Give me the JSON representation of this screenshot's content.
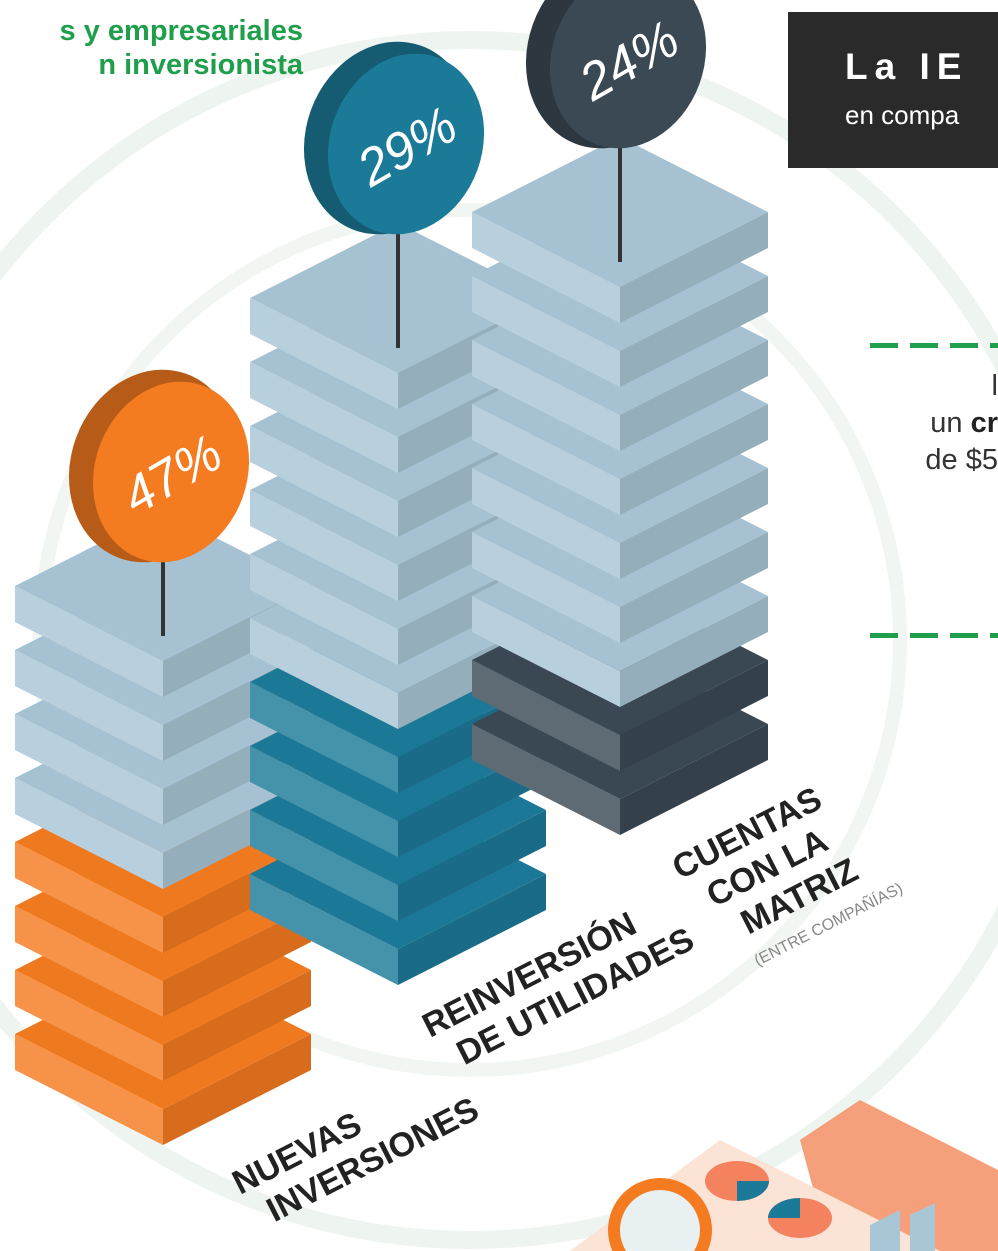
{
  "header": {
    "left_title_line1": "s y empresariales",
    "left_title_line2": "n inversionista",
    "box_title": "La IE",
    "box_subtitle": "en compa"
  },
  "right_panel": {
    "line1": "l",
    "line2_prefix": "un ",
    "line2_bold": "cr",
    "line3": "de $5"
  },
  "colors": {
    "green_accent": "#1f9e4b",
    "orange": "#f47b20",
    "teal": "#1c7a99",
    "dark_slate": "#3b4955",
    "light_block": "#a9c6d6"
  },
  "chart_data": {
    "type": "bar",
    "title": "",
    "categories": [
      "NUEVAS INVERSIONES",
      "REINVERSIÓN DE UTILIDADES",
      "CUENTAS CON LA MATRIZ (ENTRE COMPAÑÍAS)"
    ],
    "values": [
      47,
      29,
      24
    ],
    "value_labels": [
      "47%",
      "29%",
      "24%"
    ],
    "category_lines": [
      [
        "NUEVAS",
        "INVERSIONES"
      ],
      [
        "REINVERSIÓN",
        "DE UTILIDADES"
      ],
      [
        "CUENTAS",
        "CON LA",
        "MATRIZ"
      ]
    ],
    "category_note": "(ENTRE COMPAÑÍAS)",
    "colors": [
      "#f47b20",
      "#1c7a99",
      "#3b4955"
    ]
  }
}
